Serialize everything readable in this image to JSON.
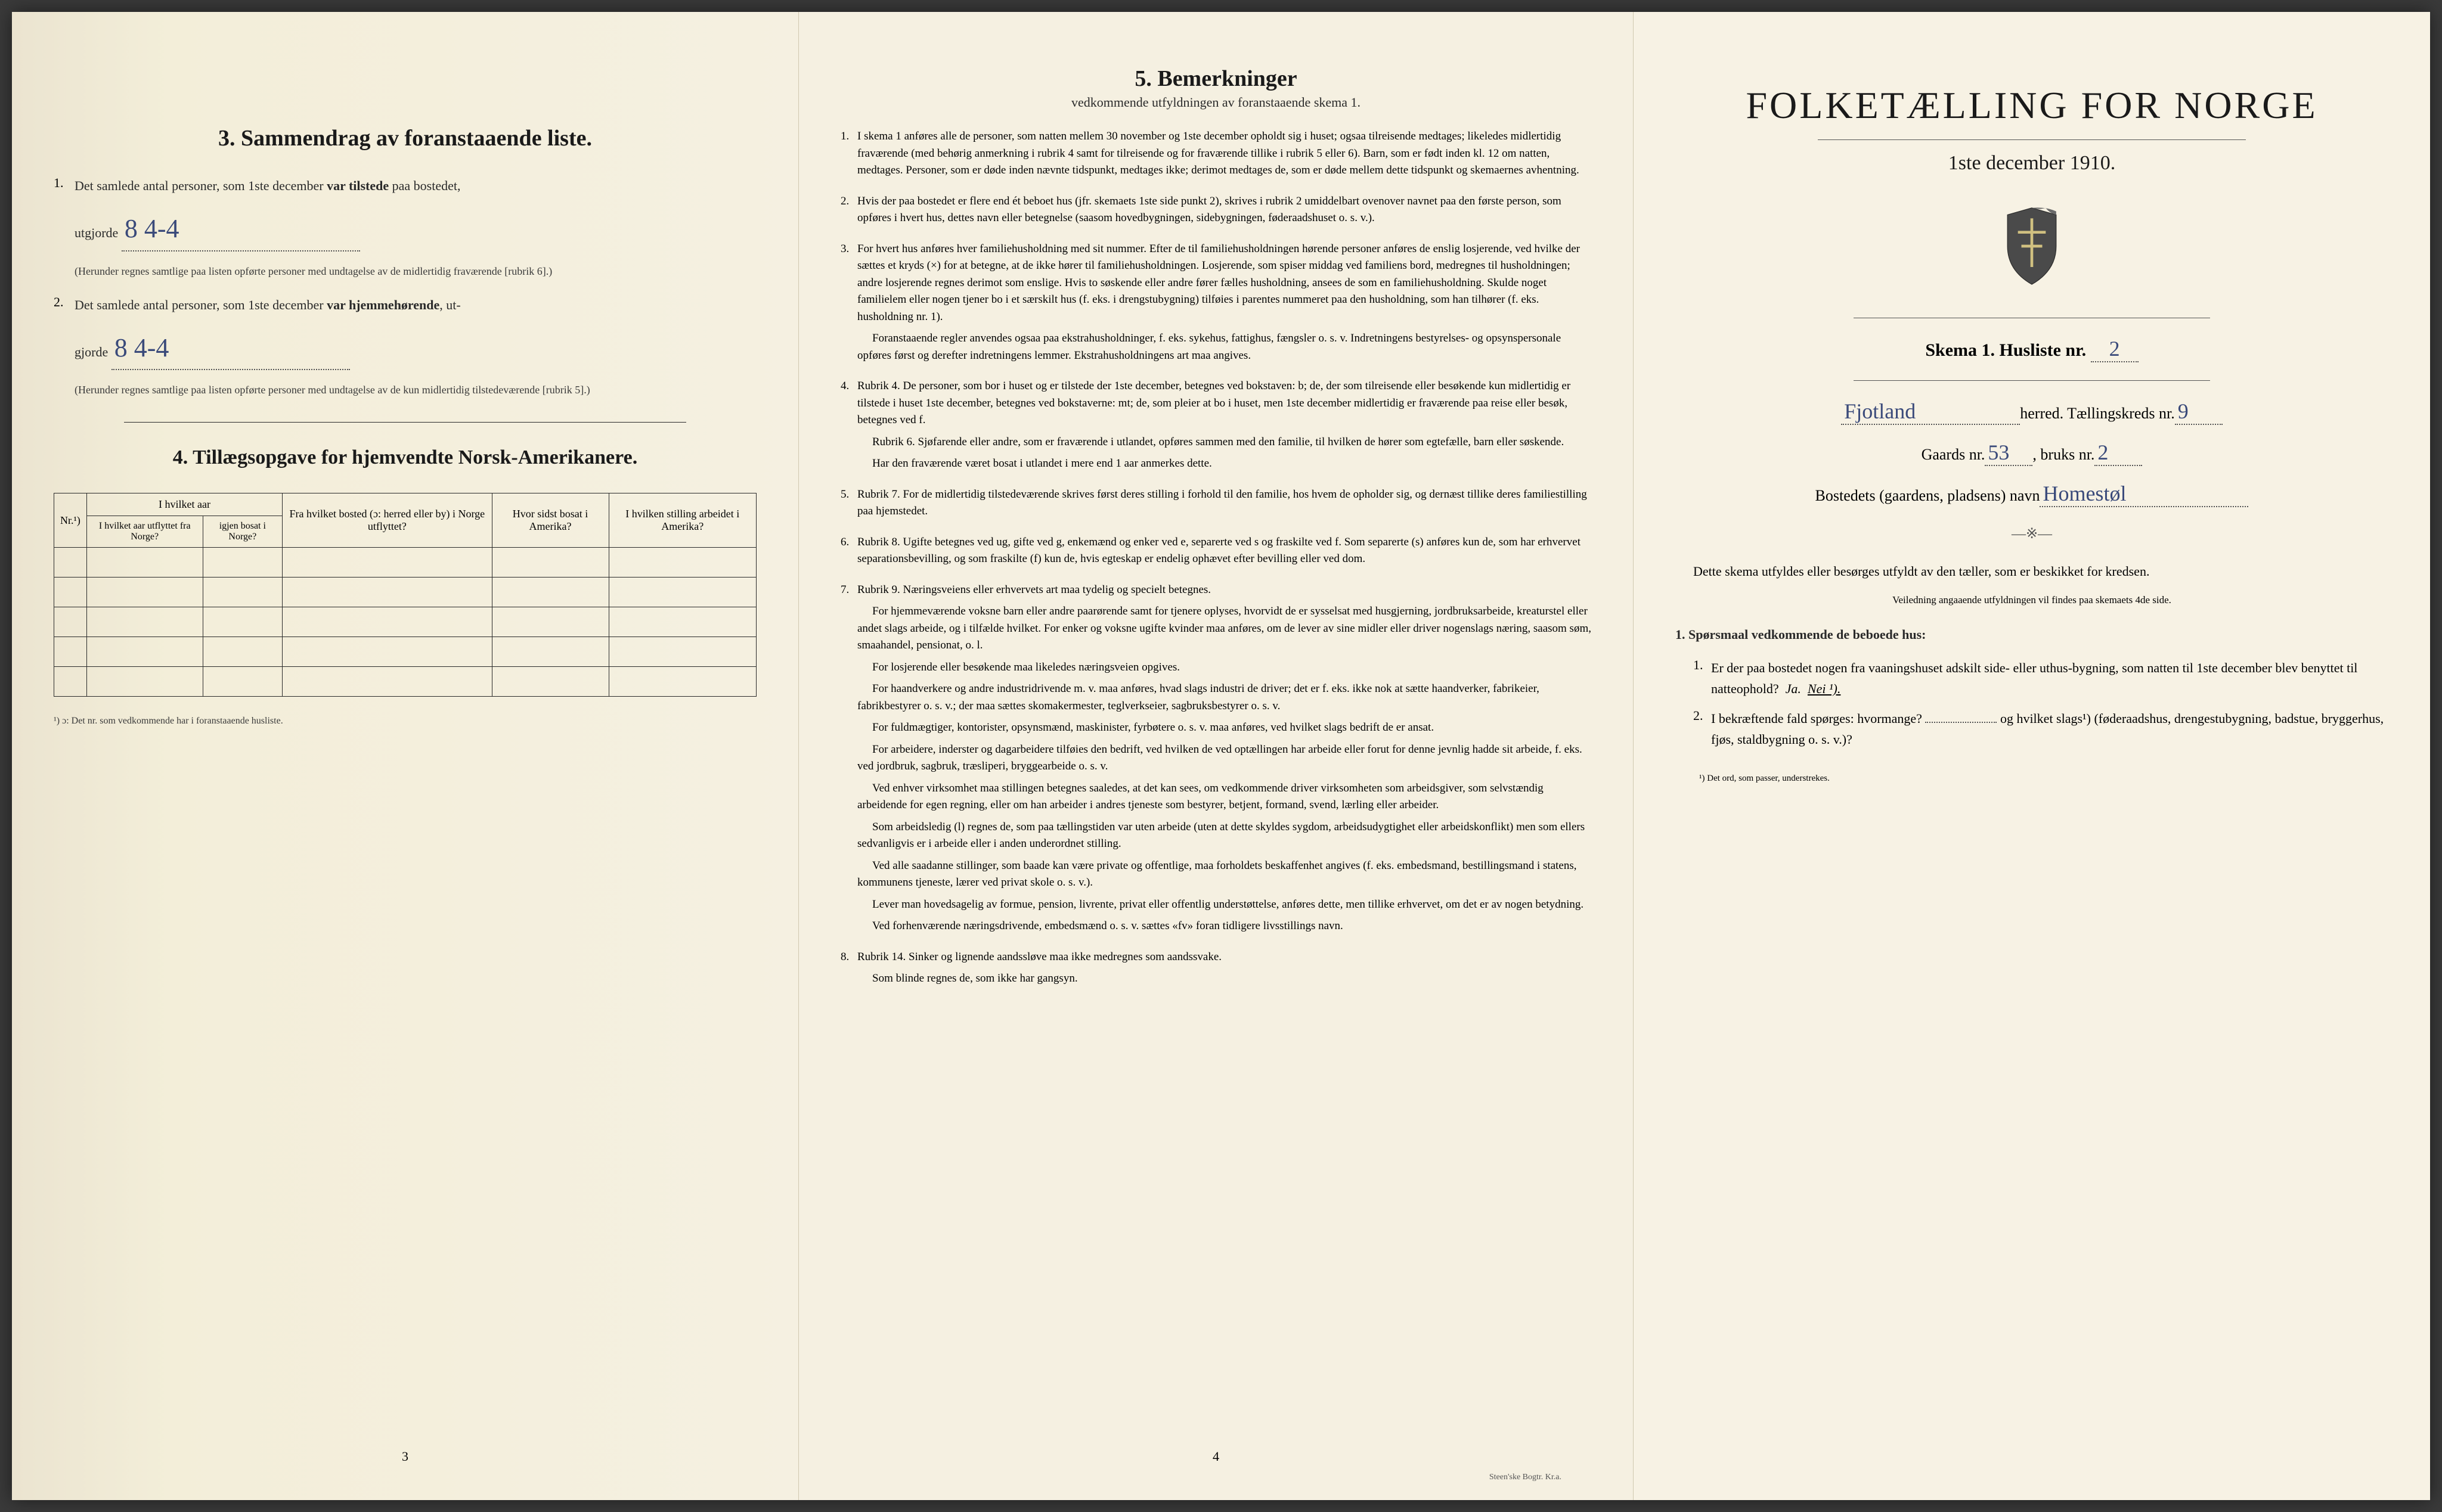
{
  "page1": {
    "section3_title": "3.  Sammendrag av foranstaaende liste.",
    "item1_text": "Det samlede antal personer, som 1ste december",
    "item1_bold": "var tilstede",
    "item1_after": "paa bostedet,",
    "item1_line2": "utgjorde",
    "item1_handwritten": "8  4-4",
    "item1_note": "(Herunder regnes samtlige paa listen opførte personer med undtagelse av de midlertidig fraværende [rubrik 6].)",
    "item2_text": "Det samlede antal personer, som 1ste december",
    "item2_bold": "var hjemmehørende",
    "item2_after": ", ut-",
    "item2_line2": "gjorde",
    "item2_handwritten": "8  4-4",
    "item2_note": "(Herunder regnes samtlige paa listen opførte personer med undtagelse av de kun midlertidig tilstedeværende [rubrik 5].)",
    "section4_title": "4.  Tillægsopgave for hjemvendte Norsk-Amerikanere.",
    "table": {
      "headers": [
        "Nr.¹)",
        "I hvilket aar utflyttet fra Norge?",
        "igjen bosat i Norge?",
        "Fra hvilket bosted (ɔ: herred eller by) i Norge utflyttet?",
        "Hvor sidst bosat i Amerika?",
        "I hvilken stilling arbeidet i Amerika?"
      ],
      "subheader_span": "I hvilket aar",
      "empty_rows": 5
    },
    "footnote": "¹) ɔ: Det nr. som vedkommende har i foranstaaende husliste.",
    "page_number": "3"
  },
  "page2": {
    "section5_title": "5.  Bemerkninger",
    "section5_sub": "vedkommende utfyldningen av foranstaaende skema 1.",
    "items": [
      {
        "num": "1.",
        "paras": [
          "I skema 1 anføres alle de personer, som natten mellem 30 november og 1ste december opholdt sig i huset; ogsaa tilreisende medtages; likeledes midlertidig fraværende (med behørig anmerkning i rubrik 4 samt for tilreisende og for fraværende tillike i rubrik 5 eller 6). Barn, som er født inden kl. 12 om natten, medtages. Personer, som er døde inden nævnte tidspunkt, medtages ikke; derimot medtages de, som er døde mellem dette tidspunkt og skemaernes avhentning."
        ]
      },
      {
        "num": "2.",
        "paras": [
          "Hvis der paa bostedet er flere end ét beboet hus (jfr. skemaets 1ste side punkt 2), skrives i rubrik 2 umiddelbart ovenover navnet paa den første person, som opføres i hvert hus, dettes navn eller betegnelse (saasom hovedbygningen, sidebygningen, føderaadshuset o. s. v.)."
        ]
      },
      {
        "num": "3.",
        "paras": [
          "For hvert hus anføres hver familiehusholdning med sit nummer. Efter de til familiehusholdningen hørende personer anføres de enslig losjerende, ved hvilke der sættes et kryds (×) for at betegne, at de ikke hører til familiehusholdningen. Losjerende, som spiser middag ved familiens bord, medregnes til husholdningen; andre losjerende regnes derimot som enslige. Hvis to søskende eller andre fører fælles husholdning, ansees de som en familiehusholdning. Skulde noget familielem eller nogen tjener bo i et særskilt hus (f. eks. i drengstubygning) tilføies i parentes nummeret paa den husholdning, som han tilhører (f. eks. husholdning nr. 1).",
          "Foranstaaende regler anvendes ogsaa paa ekstrahusholdninger, f. eks. sykehus, fattighus, fængsler o. s. v. Indretningens bestyrelses- og opsynspersonale opføres først og derefter indretningens lemmer. Ekstrahusholdningens art maa angives."
        ]
      },
      {
        "num": "4.",
        "paras": [
          "Rubrik 4. De personer, som bor i huset og er tilstede der 1ste december, betegnes ved bokstaven: b; de, der som tilreisende eller besøkende kun midlertidig er tilstede i huset 1ste december, betegnes ved bokstaverne: mt; de, som pleier at bo i huset, men 1ste december midlertidig er fraværende paa reise eller besøk, betegnes ved f.",
          "Rubrik 6. Sjøfarende eller andre, som er fraværende i utlandet, opføres sammen med den familie, til hvilken de hører som egtefælle, barn eller søskende.",
          "Har den fraværende været bosat i utlandet i mere end 1 aar anmerkes dette."
        ]
      },
      {
        "num": "5.",
        "paras": [
          "Rubrik 7. For de midlertidig tilstedeværende skrives først deres stilling i forhold til den familie, hos hvem de opholder sig, og dernæst tillike deres familiestilling paa hjemstedet."
        ]
      },
      {
        "num": "6.",
        "paras": [
          "Rubrik 8. Ugifte betegnes ved ug, gifte ved g, enkemænd og enker ved e, separerte ved s og fraskilte ved f. Som separerte (s) anføres kun de, som har erhvervet separationsbevilling, og som fraskilte (f) kun de, hvis egteskap er endelig ophævet efter bevilling eller ved dom."
        ]
      },
      {
        "num": "7.",
        "paras": [
          "Rubrik 9. Næringsveiens eller erhvervets art maa tydelig og specielt betegnes.",
          "For hjemmeværende voksne barn eller andre paarørende samt for tjenere oplyses, hvorvidt de er sysselsat med husgjerning, jordbruksarbeide, kreaturstel eller andet slags arbeide, og i tilfælde hvilket. For enker og voksne ugifte kvinder maa anføres, om de lever av sine midler eller driver nogenslags næring, saasom søm, smaahandel, pensionat, o. l.",
          "For losjerende eller besøkende maa likeledes næringsveien opgives.",
          "For haandverkere og andre industridrivende m. v. maa anføres, hvad slags industri de driver; det er f. eks. ikke nok at sætte haandverker, fabrikeier, fabrikbestyrer o. s. v.; der maa sættes skomakermester, teglverkseier, sagbruksbestyrer o. s. v.",
          "For fuldmægtiger, kontorister, opsynsmænd, maskinister, fyrbøtere o. s. v. maa anføres, ved hvilket slags bedrift de er ansat.",
          "For arbeidere, inderster og dagarbeidere tilføies den bedrift, ved hvilken de ved optællingen har arbeide eller forut for denne jevnlig hadde sit arbeide, f. eks. ved jordbruk, sagbruk, træsliperi, bryggearbeide o. s. v.",
          "Ved enhver virksomhet maa stillingen betegnes saaledes, at det kan sees, om vedkommende driver virksomheten som arbeidsgiver, som selvstændig arbeidende for egen regning, eller om han arbeider i andres tjeneste som bestyrer, betjent, formand, svend, lærling eller arbeider.",
          "Som arbeidsledig (l) regnes de, som paa tællingstiden var uten arbeide (uten at dette skyldes sygdom, arbeidsudygtighet eller arbeidskonflikt) men som ellers sedvanligvis er i arbeide eller i anden underordnet stilling.",
          "Ved alle saadanne stillinger, som baade kan være private og offentlige, maa forholdets beskaffenhet angives (f. eks. embedsmand, bestillingsmand i statens, kommunens tjeneste, lærer ved privat skole o. s. v.).",
          "Lever man hovedsagelig av formue, pension, livrente, privat eller offentlig understøttelse, anføres dette, men tillike erhvervet, om det er av nogen betydning.",
          "Ved forhenværende næringsdrivende, embedsmænd o. s. v. sættes «fv» foran tidligere livsstillings navn."
        ]
      },
      {
        "num": "8.",
        "paras": [
          "Rubrik 14. Sinker og lignende aandssløve maa ikke medregnes som aandssvake.",
          "Som blinde regnes de, som ikke har gangsyn."
        ]
      }
    ],
    "page_number": "4",
    "printer": "Steen'ske Bogtr. Kr.a."
  },
  "page3": {
    "main_title": "FOLKETÆLLING FOR NORGE",
    "date": "1ste december 1910.",
    "skema_label": "Skema 1.   Husliste nr.",
    "husliste_nr": "2",
    "herred_value": "Fjotland",
    "herred_label": "herred.  Tællingskreds nr.",
    "kreds_nr": "9",
    "gaards_label": "Gaards nr.",
    "gaards_nr": "53",
    "bruks_label": ", bruks nr.",
    "bruks_nr": "2",
    "bosted_label": "Bostedets (gaardens, pladsens) navn",
    "bosted_value": "Homestøl",
    "body_text": "Dette skema utfyldes eller besørges utfyldt av den tæller, som er beskikket for kredsen.",
    "veiledning": "Veiledning angaaende utfyldningen vil findes paa skemaets 4de side.",
    "q_heading": "1. Spørsmaal vedkommende de beboede hus:",
    "q1": "Er der paa bostedet nogen fra vaaningshuset adskilt side- eller uthus-bygning, som natten til 1ste december blev benyttet til natteophold?",
    "q1_ja": "Ja.",
    "q1_nei": "Nei ¹).",
    "q2": "I bekræftende fald spørges: hvormange?",
    "q2_after": "og hvilket slags¹) (føderaadshus, drengestubygning, badstue, bryggerhus, fjøs, staldbygning o. s. v.)?",
    "footnote": "¹) Det ord, som passer, understrekes."
  },
  "colors": {
    "paper": "#f5f0e1",
    "paper_aged": "#ebe4d0",
    "ink": "#1a1a1a",
    "handwriting": "#3a4a7a"
  }
}
